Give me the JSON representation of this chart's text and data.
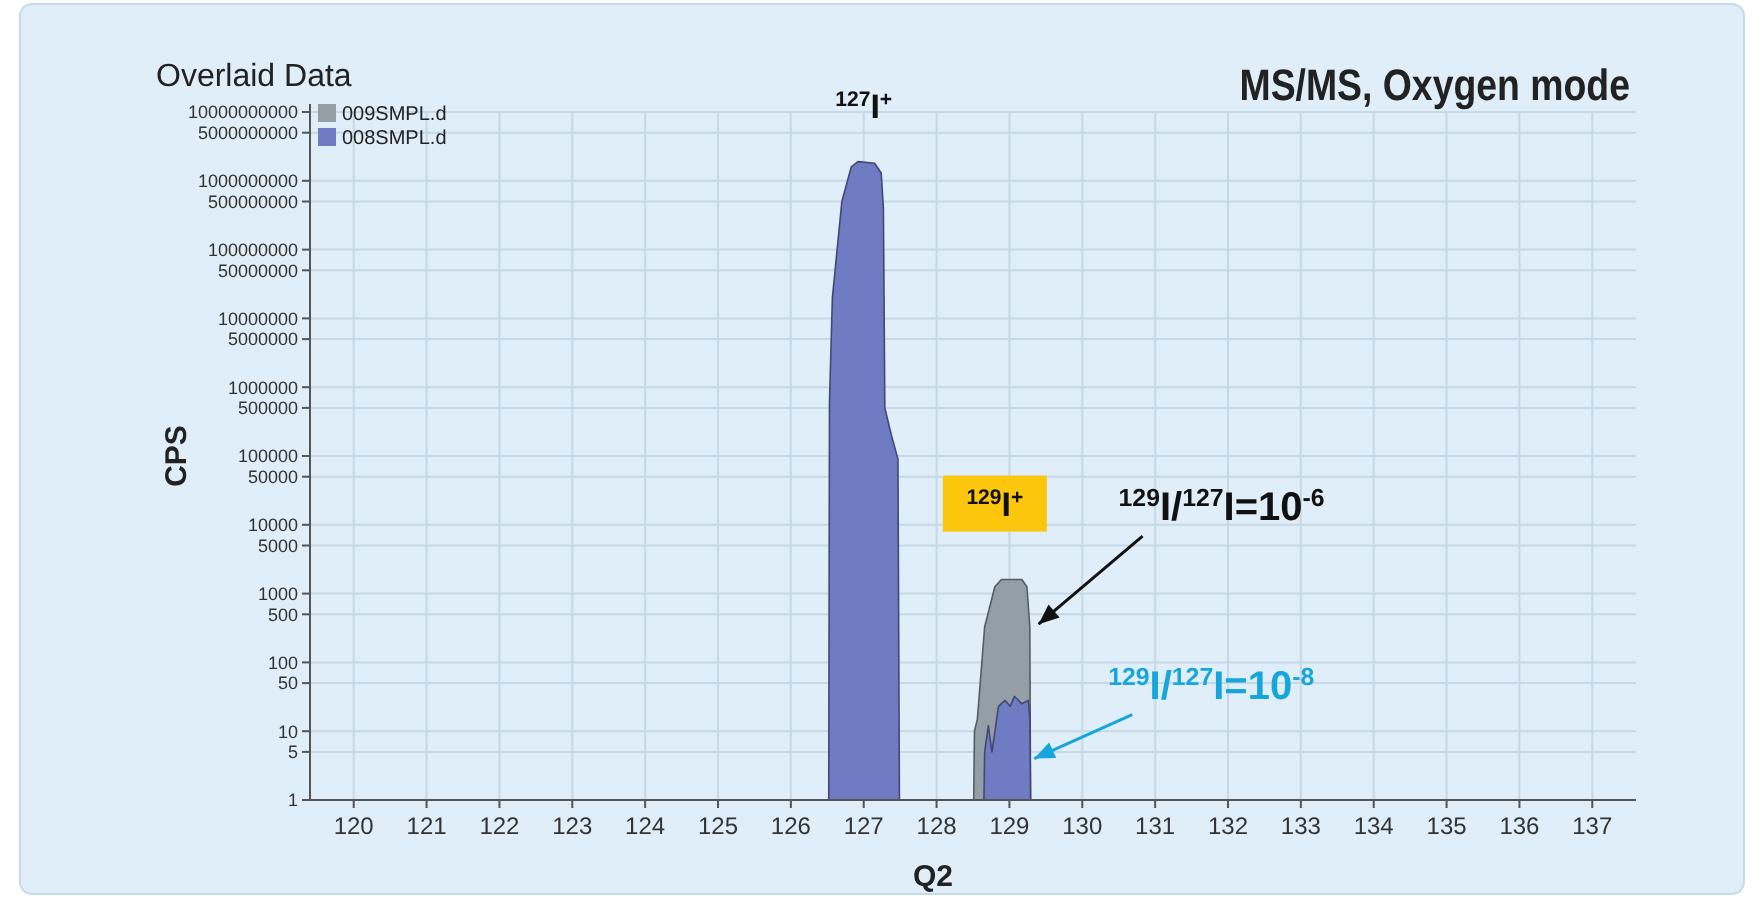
{
  "chart_data": {
    "type": "area",
    "title": "MS/MS, Oxygen mode",
    "subtitle": "Overlaid Data",
    "xlabel": "Q2",
    "ylabel": "CPS",
    "log": "y",
    "grid": true,
    "legend": "top left",
    "xlim": [
      119.4,
      137.6
    ],
    "xticks": [
      120,
      121,
      122,
      123,
      124,
      125,
      126,
      127,
      128,
      129,
      130,
      131,
      132,
      133,
      134,
      135,
      136,
      137
    ],
    "ylim": [
      1,
      10000000000
    ],
    "yticks": [
      1,
      5,
      10,
      50,
      100,
      500,
      1000,
      5000,
      10000,
      50000,
      100000,
      500000,
      1000000,
      5000000,
      10000000,
      50000000,
      100000000,
      500000000,
      1000000000,
      5000000000,
      10000000000
    ],
    "series": [
      {
        "name": "009SMPL.d",
        "color": "#939ea6",
        "x": [
          128.51,
          128.52,
          128.56,
          128.66,
          128.8,
          128.89,
          129.17,
          129.24,
          129.28,
          129.29
        ],
        "values": [
          1,
          10,
          15,
          330,
          1260,
          1600,
          1600,
          1260,
          330,
          1
        ]
      },
      {
        "name": "008SMPL.d",
        "color": "#6f7cc4",
        "x": [
          126.52,
          126.53,
          126.57,
          126.7,
          126.83,
          126.92,
          127.15,
          127.24,
          127.27,
          127.29,
          127.38,
          127.47,
          127.49,
          128.1,
          128.65,
          128.66,
          128.71,
          128.76,
          128.85,
          128.94,
          129.01,
          129.07,
          129.17,
          129.26,
          129.28,
          129.29
        ],
        "values": [
          1,
          600000,
          20000000,
          500000000,
          1600000000,
          1900000000,
          1800000000,
          1300000000,
          400000000,
          500000,
          200000,
          90000,
          1,
          null,
          1,
          5,
          12,
          5,
          23,
          28,
          23,
          32,
          25,
          28,
          15,
          1
        ]
      }
    ],
    "annotations": [
      {
        "text": "$^{127}$I$^{+}$",
        "x": 127,
        "y": 1900000000
      },
      {
        "text": "$^{129}$I$^{+}$",
        "x": 128.8,
        "y": 1600
      },
      {
        "text": "$^{129}$I/$^{127}$I=10$^{-6}$",
        "x": 129.4,
        "y": 360
      },
      {
        "text": "$^{129}$I/$^{127}$I=10$^{-8}$",
        "x": 129.34,
        "y": 4
      }
    ]
  }
}
